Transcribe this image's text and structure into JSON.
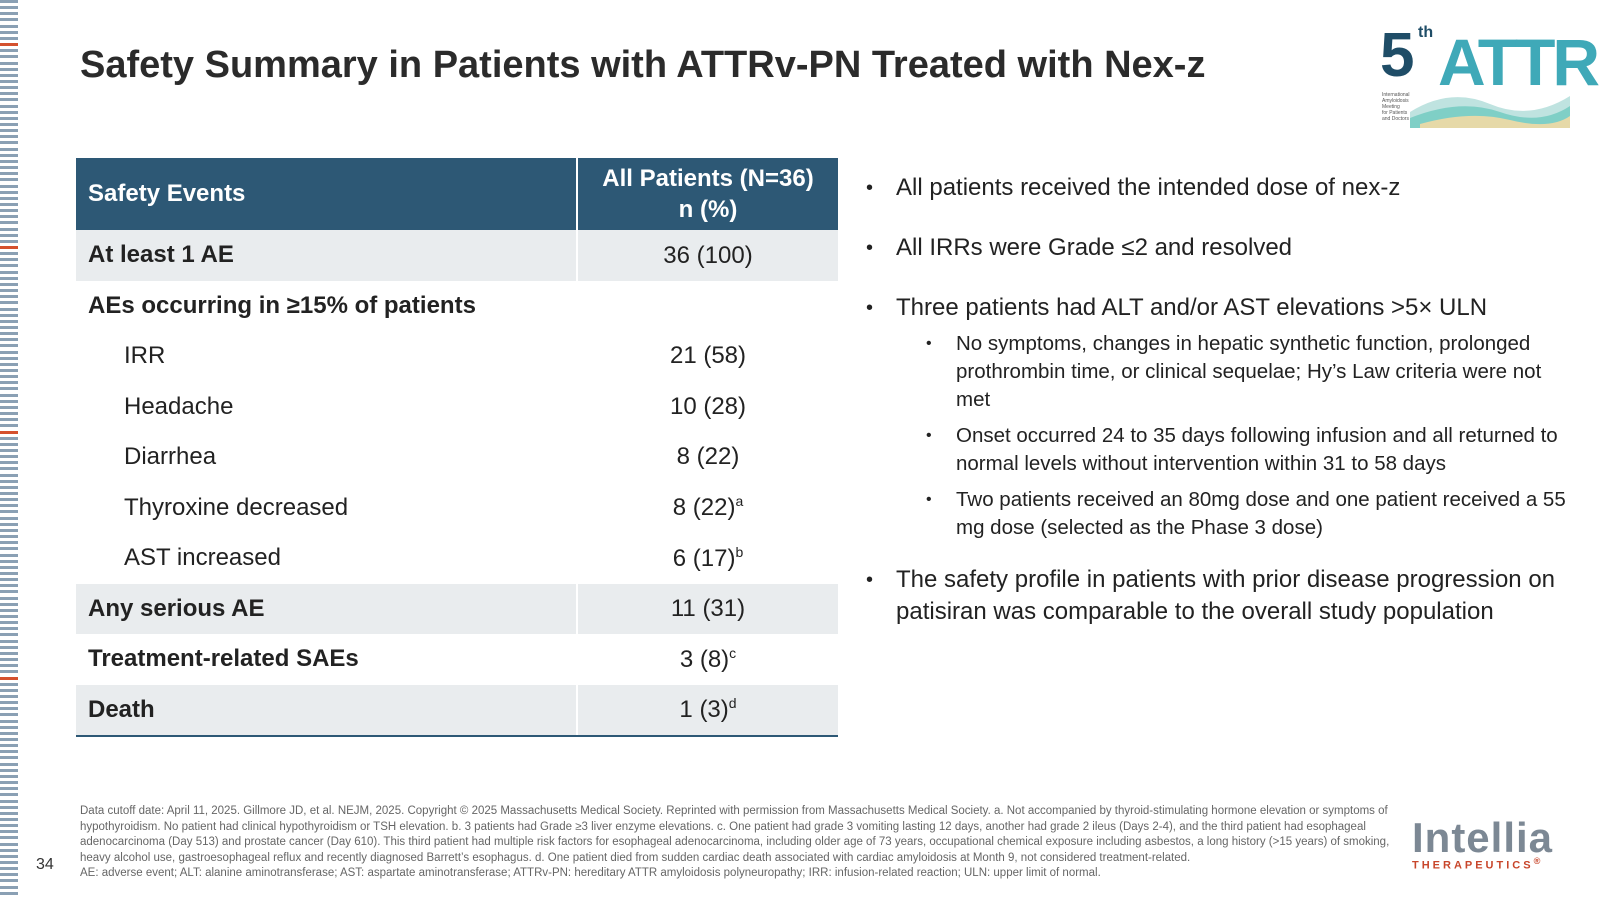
{
  "title": "Safety Summary in Patients with ATTRv-PN Treated with Nex-z",
  "logo_attr": {
    "number": "5",
    "sup": "th",
    "word": "ATTR",
    "subtitle_lines": [
      "International",
      "Amyloidosis",
      "Meeting",
      "for Patients",
      "and Doctors"
    ]
  },
  "table": {
    "header_events": "Safety Events",
    "header_patients_line1": "All Patients (N=36)",
    "header_patients_line2": "n (%)",
    "rows": [
      {
        "label": "At least 1 AE",
        "value": "36 (100)",
        "sup": ""
      },
      {
        "label": "AEs occurring in ≥15% of patients",
        "value": "",
        "sup": ""
      },
      {
        "label": "IRR",
        "value": "21 (58)",
        "sup": ""
      },
      {
        "label": "Headache",
        "value": "10 (28)",
        "sup": ""
      },
      {
        "label": "Diarrhea",
        "value": "8 (22)",
        "sup": ""
      },
      {
        "label": "Thyroxine decreased",
        "value": "8 (22)",
        "sup": "a"
      },
      {
        "label": "AST increased",
        "value": "6 (17)",
        "sup": "b"
      },
      {
        "label": "Any serious AE",
        "value": "11 (31)",
        "sup": ""
      },
      {
        "label": "Treatment-related SAEs",
        "value": "3 (8)",
        "sup": "c"
      },
      {
        "label": "Death",
        "value": "1 (3)",
        "sup": "d"
      }
    ]
  },
  "bullets": [
    "All patients received the intended dose of nex-z",
    "All IRRs were Grade ≤2 and resolved",
    "Three patients had ALT and/or AST elevations >5× ULN",
    "The safety profile in patients with prior disease progression on patisiran was comparable to the overall study population"
  ],
  "sub_bullets": [
    "No symptoms, changes in hepatic synthetic function, prolonged prothrombin time, or clinical sequelae; Hy’s Law criteria were not met",
    "Onset occurred 24 to 35 days following infusion and all returned to normal levels without intervention within 31 to 58 days",
    "Two patients received an 80mg dose and one patient received a 55 mg dose (selected as the Phase 3 dose)"
  ],
  "footnote_main": "Data cutoff date: April 11, 2025. Gillmore JD, et al. NEJM, 2025. Copyright © 2025 Massachusetts Medical Society. Reprinted with permission from Massachusetts Medical Society. a. Not accompanied by thyroid-stimulating hormone elevation or symptoms of hypothyroidism. No patient had clinical hypothyroidism or TSH elevation. b. 3 patients had Grade ≥3 liver enzyme elevations. c. One patient had grade 3 vomiting lasting 12 days, another had grade 2 ileus (Days 2-4), and the third patient had esophageal adenocarcinoma (Day 513) and prostate cancer (Day 610). This third patient had multiple risk factors for esophageal adenocarcinoma, including older age of 73 years, occupational chemical exposure including asbestos, a long history (>15 years) of smoking, heavy alcohol use, gastroesophageal reflux and recently diagnosed Barrett’s esophagus. d. One patient died from sudden cardiac death associated with cardiac amyloidosis at Month 9, not considered treatment-related.",
  "footnote_abbrev": "AE: adverse event; ALT: alanine aminotransferase; AST: aspartate aminotransferase; ATTRv-PN: hereditary ATTR amyloidosis polyneuropathy; IRR: infusion-related reaction; ULN: upper limit of normal.",
  "page_number": "34",
  "intellia": {
    "word": "Intellia",
    "tagline": "THERAPEUTICS",
    "mark": "®"
  },
  "colors": {
    "header_bg": "#2d5875",
    "row_shade": "#e9ecee",
    "strip_blue": "#8aa0b4",
    "strip_red": "#d4512e"
  }
}
